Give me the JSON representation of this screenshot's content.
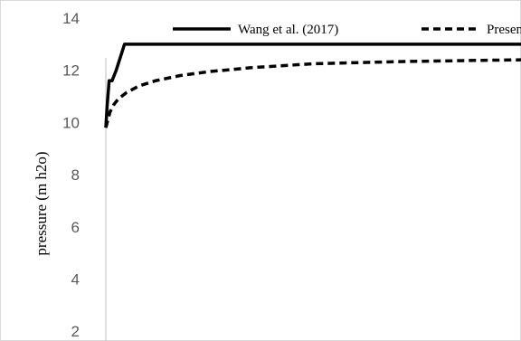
{
  "chart_data": {
    "type": "line",
    "title": "",
    "xlabel": "",
    "ylabel": "pressure (m h2o)",
    "ylim": [
      1,
      14
    ],
    "xlim": [
      0,
      100
    ],
    "yticks": [
      2,
      4,
      6,
      8,
      10,
      12,
      14
    ],
    "grid": false,
    "legend": "top",
    "series": [
      {
        "name": "Wang et al. (2017)",
        "style": "solid",
        "color": "#000000",
        "x": [
          0,
          0.3,
          0.8,
          1.5,
          2.5,
          4.5,
          100
        ],
        "y": [
          9.8,
          10.6,
          11.6,
          11.6,
          12.0,
          13.0,
          13.0
        ]
      },
      {
        "name": "Present",
        "style": "dashed",
        "color": "#000000",
        "x": [
          0,
          1,
          2,
          3,
          5,
          8,
          12,
          18,
          25,
          35,
          50,
          70,
          90,
          100
        ],
        "y": [
          9.8,
          10.4,
          10.7,
          10.9,
          11.15,
          11.4,
          11.6,
          11.8,
          11.95,
          12.1,
          12.25,
          12.33,
          12.38,
          12.4
        ]
      }
    ]
  }
}
